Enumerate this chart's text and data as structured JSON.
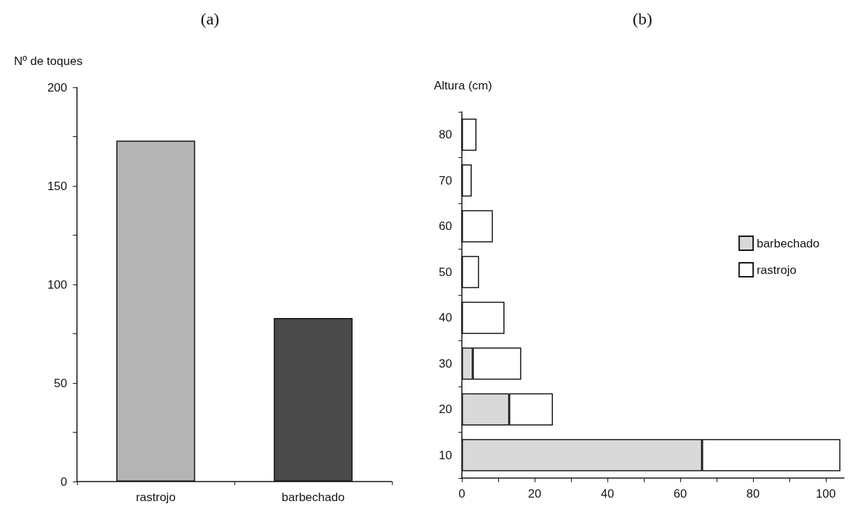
{
  "chart_data": [
    {
      "type": "bar",
      "title": "(a)",
      "ylabel": "Nº de toques",
      "categories": [
        "rastrojo",
        "barbechado"
      ],
      "values": [
        173,
        83
      ],
      "colors": [
        "#b4b4b4",
        "#4a4a4a"
      ],
      "ylim": [
        0,
        200
      ],
      "yticks": [
        0,
        {
          "value": 25,
          "label": null
        },
        50,
        {
          "value": 75,
          "label": null
        },
        100,
        {
          "value": 125,
          "label": null
        },
        150,
        {
          "value": 175,
          "label": null
        },
        200
      ],
      "grid": false,
      "legend": false
    },
    {
      "type": "bar",
      "title": "(b)",
      "ylabel": "Altura (cm)",
      "orientation": "horizontal",
      "stacked": true,
      "categories": [
        "80",
        "70",
        "60",
        "50",
        "40",
        "30",
        "20",
        "10"
      ],
      "series": [
        {
          "name": "barbechado",
          "color": "#d9d9d9",
          "values": [
            0,
            0,
            0,
            0,
            0,
            3,
            13,
            66
          ]
        },
        {
          "name": "rastrojo",
          "color": "#ffffff",
          "values": [
            4,
            2.7,
            8.5,
            4.7,
            11.7,
            13.3,
            12,
            38
          ]
        }
      ],
      "xlim": [
        0,
        105
      ],
      "xticks": [
        0,
        {
          "value": 10,
          "label": null
        },
        20,
        {
          "value": 30,
          "label": null
        },
        40,
        {
          "value": 50,
          "label": null
        },
        60,
        {
          "value": 70,
          "label": null
        },
        80,
        {
          "value": 90,
          "label": null
        },
        100
      ],
      "grid": false,
      "legend": "right"
    }
  ]
}
